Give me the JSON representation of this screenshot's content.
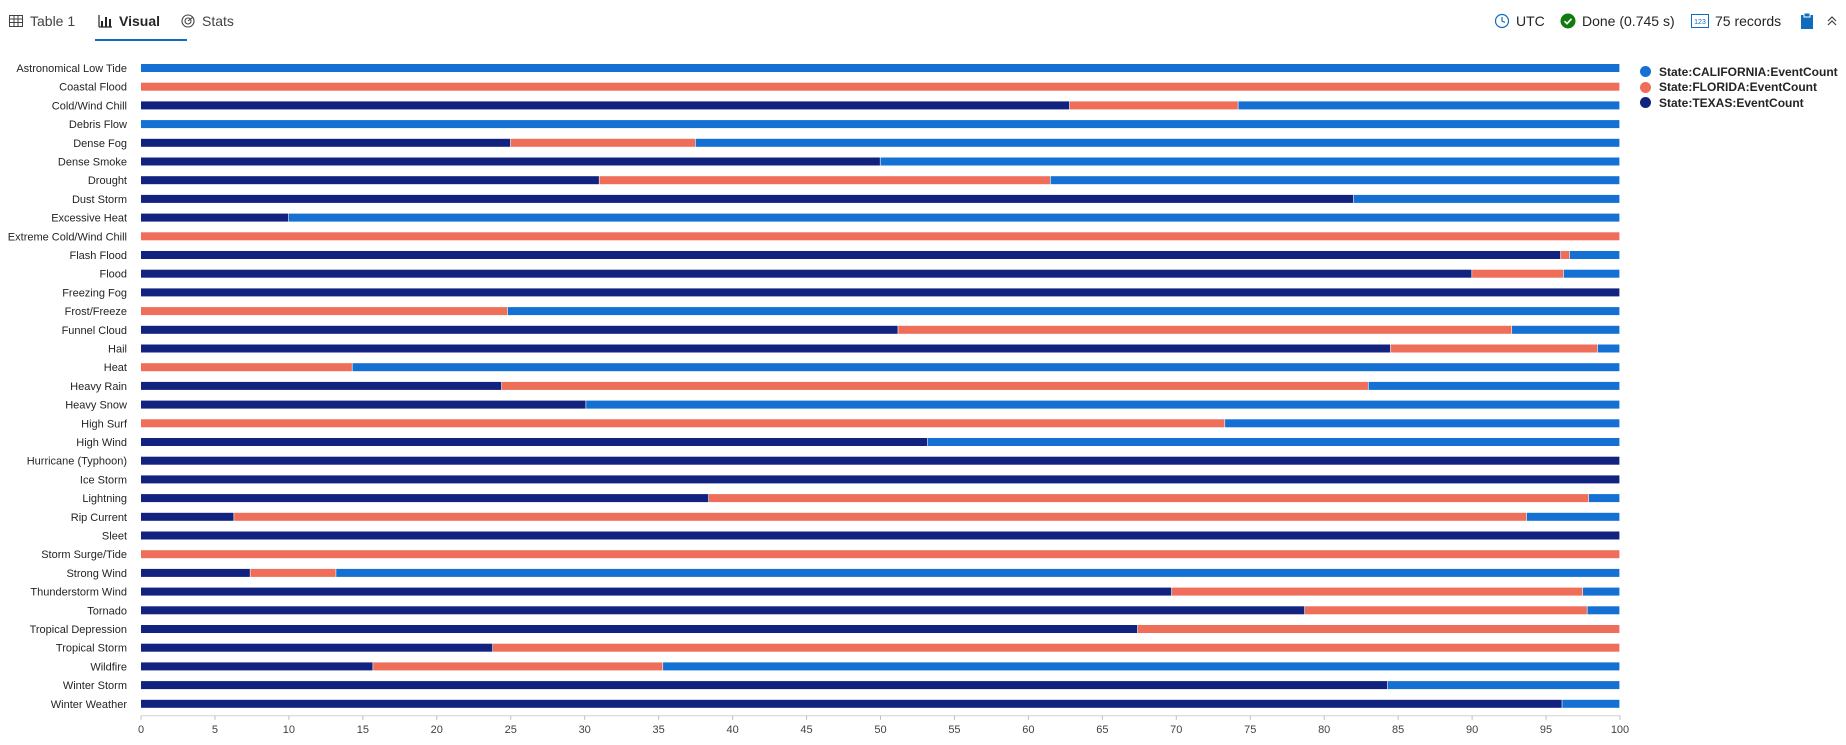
{
  "tabs": [
    {
      "label": "Table 1",
      "icon": "table-icon"
    },
    {
      "label": "Visual",
      "icon": "bar-chart-icon"
    },
    {
      "label": "Stats",
      "icon": "stats-icon"
    }
  ],
  "status": {
    "timezone": "UTC",
    "done": "Done (0.745 s)",
    "records": "75 records"
  },
  "colors": {
    "CALIFORNIA": "#1470d2",
    "FLORIDA": "#ee6e5a",
    "TEXAS": "#12237f",
    "accent": "#0f6cbd",
    "done": "#107c10"
  },
  "chart_data": {
    "type": "bar",
    "orientation": "horizontal",
    "stacked": "100%",
    "xlim": [
      0,
      100
    ],
    "xticks": [
      0,
      5,
      10,
      15,
      20,
      25,
      30,
      35,
      40,
      45,
      50,
      55,
      60,
      65,
      70,
      75,
      80,
      85,
      90,
      95,
      100
    ],
    "legend_position": "top-right",
    "grid": false,
    "categories": [
      "Astronomical Low Tide",
      "Coastal Flood",
      "Cold/Wind Chill",
      "Debris Flow",
      "Dense Fog",
      "Dense Smoke",
      "Drought",
      "Dust Storm",
      "Excessive Heat",
      "Extreme Cold/Wind Chill",
      "Flash Flood",
      "Flood",
      "Freezing Fog",
      "Frost/Freeze",
      "Funnel Cloud",
      "Hail",
      "Heat",
      "Heavy Rain",
      "Heavy Snow",
      "High Surf",
      "High Wind",
      "Hurricane (Typhoon)",
      "Ice Storm",
      "Lightning",
      "Rip Current",
      "Sleet",
      "Storm Surge/Tide",
      "Strong Wind",
      "Thunderstorm Wind",
      "Tornado",
      "Tropical Depression",
      "Tropical Storm",
      "Wildfire",
      "Winter Storm",
      "Winter Weather"
    ],
    "series": [
      {
        "name": "State:TEXAS:EventCount",
        "values": [
          0,
          0,
          62.8,
          0,
          25,
          50,
          31,
          82,
          10,
          0,
          96,
          90,
          100,
          0,
          51.2,
          84.5,
          0,
          24.4,
          30.1,
          0,
          53.2,
          100,
          100,
          38.4,
          6.3,
          100,
          0,
          7.4,
          69.7,
          78.7,
          67.4,
          23.8,
          15.7,
          84.3,
          96.1
        ]
      },
      {
        "name": "State:FLORIDA:EventCount",
        "values": [
          0,
          100,
          11.4,
          0,
          12.5,
          0,
          30.5,
          0,
          0,
          100,
          0.6,
          6.2,
          0,
          24.8,
          41.5,
          14,
          14.3,
          58.6,
          0,
          73.3,
          0,
          0,
          0,
          59.5,
          87.4,
          0,
          100,
          5.8,
          27.8,
          19.1,
          32.6,
          76.2,
          19.6,
          0,
          0
        ]
      },
      {
        "name": "State:CALIFORNIA:EventCount",
        "values": [
          100,
          0,
          25.8,
          100,
          62.5,
          50,
          38.5,
          18,
          90,
          0,
          3.4,
          3.8,
          0,
          75.2,
          7.3,
          1.5,
          85.7,
          17,
          69.9,
          26.7,
          46.8,
          0,
          0,
          2.1,
          6.3,
          0,
          0,
          86.8,
          2.5,
          2.2,
          0,
          0,
          64.7,
          15.7,
          3.9
        ]
      }
    ]
  }
}
